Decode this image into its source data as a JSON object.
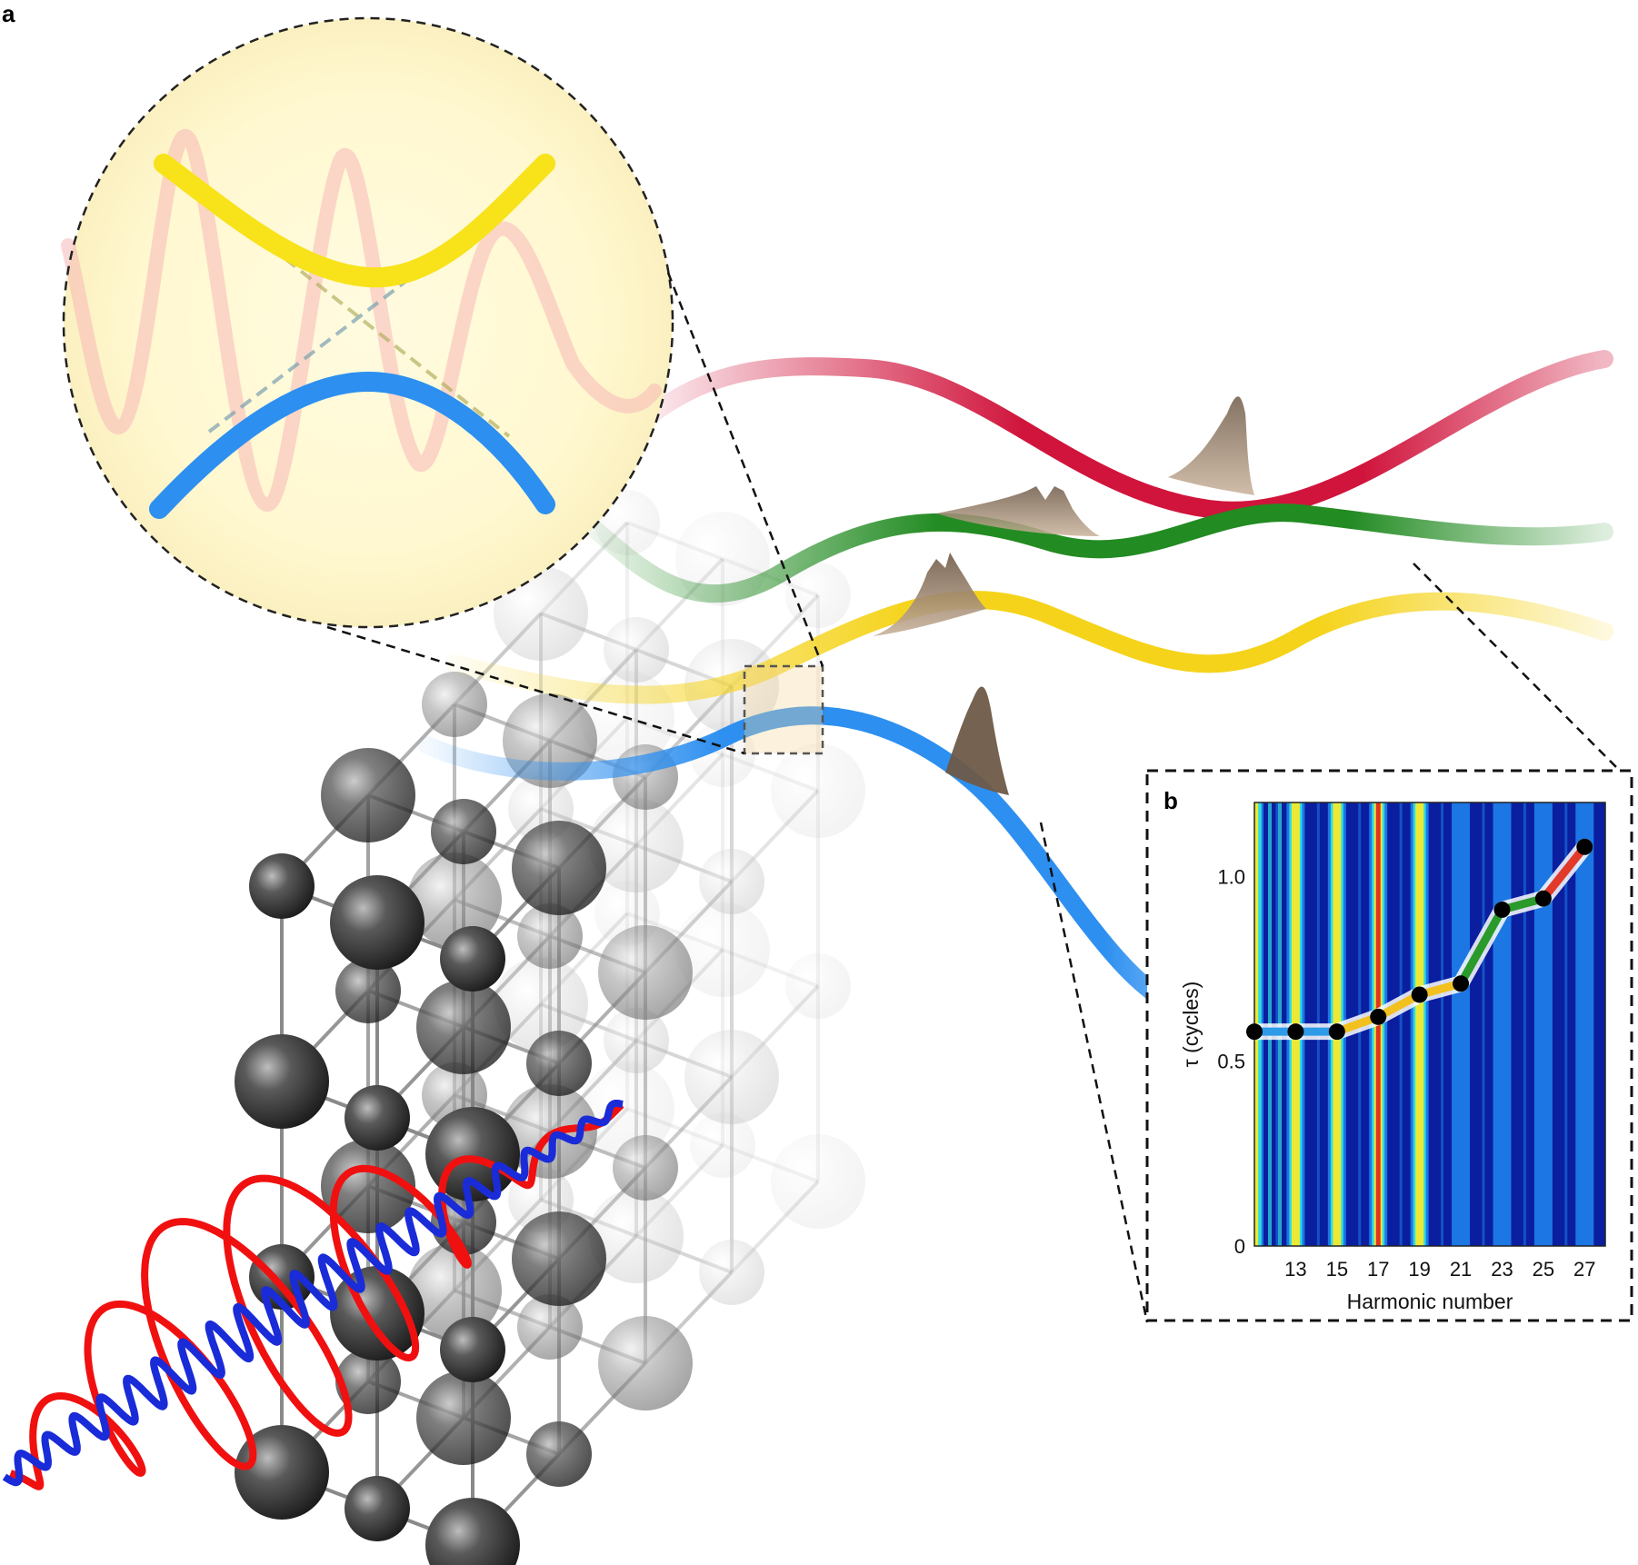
{
  "panels": {
    "a": "a",
    "b": "b"
  },
  "chart_data": {
    "type": "heatmap",
    "xlabel": "Harmonic number",
    "ylabel": "τ (cycles)",
    "x_ticks": [
      "13",
      "15",
      "17",
      "19",
      "21",
      "23",
      "25",
      "27"
    ],
    "y_ticks": [
      "0",
      "0.5",
      "1.0"
    ],
    "xlim": [
      11,
      28
    ],
    "ylim": [
      0,
      1.2
    ],
    "harmonics": [
      11,
      13,
      15,
      17,
      19,
      21,
      23,
      25,
      27
    ],
    "delay_peak": [
      {
        "harmonic": 11,
        "tau": 0.58
      },
      {
        "harmonic": 13,
        "tau": 0.58
      },
      {
        "harmonic": 15,
        "tau": 0.58
      },
      {
        "harmonic": 17,
        "tau": 0.62
      },
      {
        "harmonic": 19,
        "tau": 0.68
      },
      {
        "harmonic": 21,
        "tau": 0.71
      },
      {
        "harmonic": 23,
        "tau": 0.91
      },
      {
        "harmonic": 25,
        "tau": 0.94
      },
      {
        "harmonic": 27,
        "tau": 1.08
      }
    ],
    "segment_colors": [
      "#2d9be8",
      "#2d9be8",
      "#f2c11f",
      "#f2c11f",
      "#f2c11f",
      "#2a9a2a",
      "#2a9a2a",
      "#e23a2a"
    ],
    "colormap": [
      "#0a1ea0",
      "#1d7be8",
      "#31e0e0",
      "#f5ea2c",
      "#e0281e"
    ]
  },
  "colors": {
    "blue_band": "#2d8ff0",
    "yellow_band": "#f5d31a",
    "green_band": "#228b22",
    "red_band": "#d0143c",
    "pulse_red": "#f01010",
    "pulse_blue": "#1a2bd8"
  }
}
